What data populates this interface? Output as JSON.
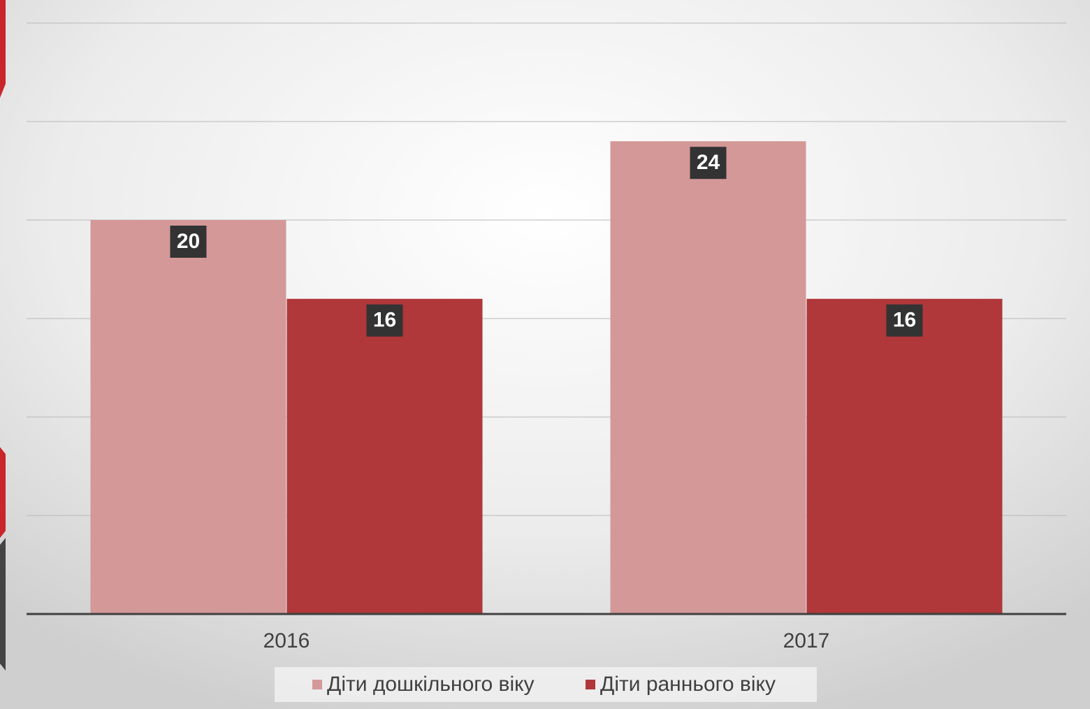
{
  "chart_data": {
    "type": "bar",
    "categories": [
      "2016",
      "2017"
    ],
    "series": [
      {
        "name": "Діти дошкільного віку",
        "color": "#d49898",
        "values": [
          20,
          24
        ]
      },
      {
        "name": "Діти раннього віку",
        "color": "#b0373a",
        "values": [
          16,
          16
        ]
      }
    ],
    "ylim": [
      0,
      30
    ],
    "yticks": [
      0,
      5,
      10,
      15,
      20,
      25,
      30
    ],
    "grid": true,
    "legend": "bottom"
  }
}
